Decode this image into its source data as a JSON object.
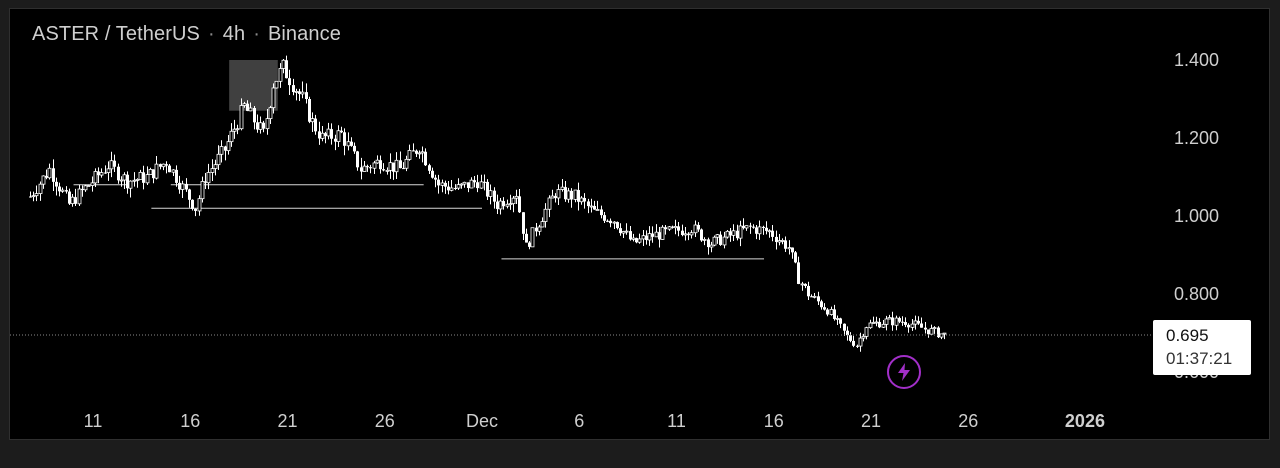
{
  "header": {
    "symbol": "ASTER / TetherUS",
    "interval": "4h",
    "exchange": "Binance",
    "separator": "·"
  },
  "price_label": {
    "price": "0.695",
    "countdown": "01:37:21",
    "background_color": "#ffffff"
  },
  "badge": {
    "icon": "lightning-icon",
    "color": "#a22fc9"
  },
  "colors": {
    "background": "#000000",
    "frame": "#1c1c1c",
    "candle": "#ffffff",
    "axis_text": "#cfcfcf",
    "highlight_box": "#555555"
  },
  "chart_data": {
    "type": "candlestick",
    "title": "",
    "xlabel": "",
    "ylabel": "",
    "interval": "4h",
    "last_price": 0.695,
    "ylim": [
      0.6,
      1.46
    ],
    "y_ticks": [
      1.4,
      1.2,
      1.0,
      0.8,
      0.6
    ],
    "y_tick_labels": [
      "1.400",
      "1.200",
      "1.000",
      "0.800",
      "0.600"
    ],
    "x_ticks": [
      {
        "date": "2025-11-11",
        "label": "11"
      },
      {
        "date": "2025-11-16",
        "label": "16"
      },
      {
        "date": "2025-11-21",
        "label": "21"
      },
      {
        "date": "2025-11-26",
        "label": "26"
      },
      {
        "date": "2025-12-01",
        "label": "Dec"
      },
      {
        "date": "2025-12-06",
        "label": "6"
      },
      {
        "date": "2025-12-11",
        "label": "11"
      },
      {
        "date": "2025-12-16",
        "label": "16"
      },
      {
        "date": "2025-12-21",
        "label": "21"
      },
      {
        "date": "2025-12-26",
        "label": "26"
      },
      {
        "date": "2026-01-01",
        "label": "2026"
      }
    ],
    "x_range": [
      "2025-11-06",
      "2026-01-05"
    ],
    "price_path": [
      [
        "2025-11-06",
        1.05
      ],
      [
        "2025-11-07",
        1.12
      ],
      [
        "2025-11-08",
        1.03
      ],
      [
        "2025-11-09",
        1.08
      ],
      [
        "2025-11-10",
        1.13
      ],
      [
        "2025-11-11",
        1.09
      ],
      [
        "2025-11-12",
        1.1
      ],
      [
        "2025-11-13",
        1.14
      ],
      [
        "2025-11-14",
        1.06
      ],
      [
        "2025-11-14.5",
        1.02
      ],
      [
        "2025-11-15",
        1.1
      ],
      [
        "2025-11-16",
        1.17
      ],
      [
        "2025-11-17",
        1.28
      ],
      [
        "2025-11-18",
        1.21
      ],
      [
        "2025-11-18.5",
        1.34
      ],
      [
        "2025-11-19",
        1.38
      ],
      [
        "2025-11-20",
        1.3
      ],
      [
        "2025-11-20.5",
        1.24
      ],
      [
        "2025-11-21",
        1.2
      ],
      [
        "2025-11-22",
        1.21
      ],
      [
        "2025-11-23",
        1.12
      ],
      [
        "2025-11-24",
        1.14
      ],
      [
        "2025-11-25",
        1.12
      ],
      [
        "2025-11-26",
        1.18
      ],
      [
        "2025-11-27",
        1.08
      ],
      [
        "2025-11-28",
        1.07
      ],
      [
        "2025-11-29",
        1.09
      ],
      [
        "2025-11-30",
        1.03
      ],
      [
        "2025-12-01",
        1.06
      ],
      [
        "2025-12-01.5",
        0.92
      ],
      [
        "2025-12-02",
        0.97
      ],
      [
        "2025-12-03",
        1.06
      ],
      [
        "2025-12-04",
        1.05
      ],
      [
        "2025-12-05",
        1.01
      ],
      [
        "2025-12-06",
        0.99
      ],
      [
        "2025-12-07",
        0.93
      ],
      [
        "2025-12-08",
        0.95
      ],
      [
        "2025-12-09",
        0.96
      ],
      [
        "2025-12-10",
        0.97
      ],
      [
        "2025-12-11",
        0.93
      ],
      [
        "2025-12-12",
        0.95
      ],
      [
        "2025-12-13",
        0.97
      ],
      [
        "2025-12-14",
        0.96
      ],
      [
        "2025-12-15",
        0.92
      ],
      [
        "2025-12-15.5",
        0.84
      ],
      [
        "2025-12-16",
        0.8
      ],
      [
        "2025-12-17",
        0.76
      ],
      [
        "2025-12-18",
        0.69
      ],
      [
        "2025-12-18.5",
        0.67
      ],
      [
        "2025-12-19",
        0.72
      ],
      [
        "2025-12-20",
        0.73
      ],
      [
        "2025-12-21",
        0.73
      ],
      [
        "2025-12-22",
        0.71
      ],
      [
        "2025-12-23",
        0.695
      ]
    ],
    "horizontal_lines": [
      {
        "value": 1.08,
        "from": "2025-11-10",
        "to": "2025-11-13"
      },
      {
        "value": 1.08,
        "from": "2025-11-15",
        "to": "2025-11-28"
      },
      {
        "value": 1.02,
        "from": "2025-11-14",
        "to": "2025-12-01"
      },
      {
        "value": 0.89,
        "from": "2025-12-02",
        "to": "2025-12-15.5"
      }
    ],
    "highlight_box": {
      "from": "2025-11-18",
      "to": "2025-11-20.5",
      "high": 1.4,
      "low": 1.27
    },
    "grid": false
  }
}
